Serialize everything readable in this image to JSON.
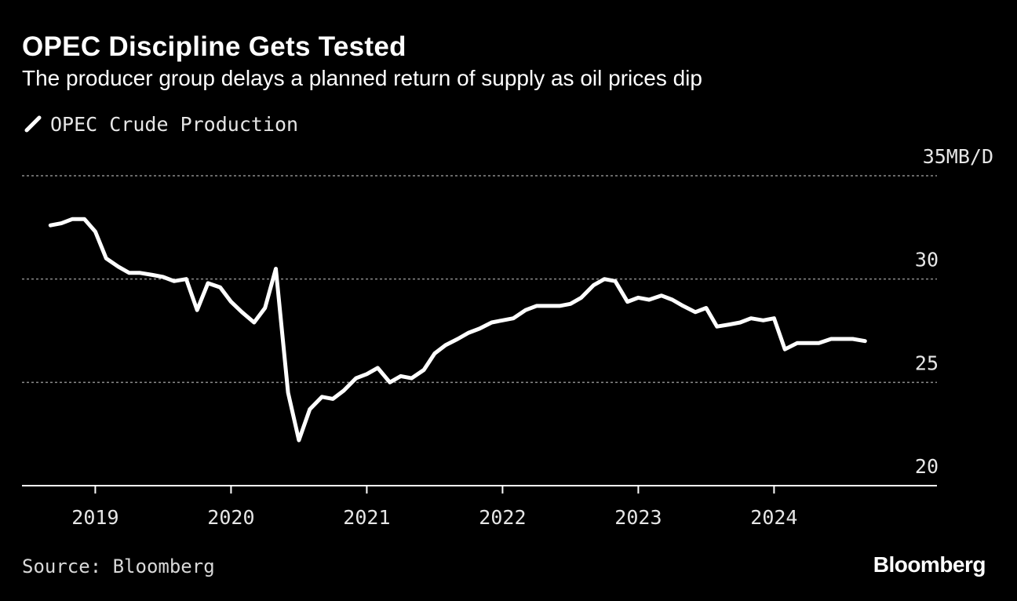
{
  "chart_data": {
    "type": "line",
    "title": "OPEC Discipline Gets Tested",
    "subtitle": "The producer group delays a planned return of supply as oil prices dip",
    "xlabel": "",
    "ylabel": "",
    "y_unit": "MB/D",
    "ylim": [
      20,
      35
    ],
    "y_ticks": [
      {
        "value": 35,
        "label": "35MB/D"
      },
      {
        "value": 30,
        "label": "30"
      },
      {
        "value": 25,
        "label": "25"
      },
      {
        "value": 20,
        "label": "20"
      }
    ],
    "x_ticks": [
      {
        "value": 2019,
        "label": "2019"
      },
      {
        "value": 2020,
        "label": "2020"
      },
      {
        "value": 2021,
        "label": "2021"
      },
      {
        "value": 2022,
        "label": "2022"
      },
      {
        "value": 2023,
        "label": "2023"
      },
      {
        "value": 2024,
        "label": "2024"
      }
    ],
    "xlim": [
      2018.46,
      2025.2
    ],
    "grid": true,
    "legend_position": "top-left",
    "series": [
      {
        "name": "OPEC Crude Production",
        "color": "#ffffff",
        "x": [
          2018.67,
          2018.75,
          2018.83,
          2018.92,
          2019.0,
          2019.08,
          2019.17,
          2019.25,
          2019.33,
          2019.42,
          2019.5,
          2019.58,
          2019.67,
          2019.75,
          2019.83,
          2019.92,
          2020.0,
          2020.08,
          2020.17,
          2020.25,
          2020.33,
          2020.42,
          2020.5,
          2020.58,
          2020.67,
          2020.75,
          2020.83,
          2020.92,
          2021.0,
          2021.08,
          2021.17,
          2021.25,
          2021.33,
          2021.42,
          2021.5,
          2021.58,
          2021.67,
          2021.75,
          2021.83,
          2021.92,
          2022.0,
          2022.08,
          2022.17,
          2022.25,
          2022.33,
          2022.42,
          2022.5,
          2022.58,
          2022.67,
          2022.75,
          2022.83,
          2022.92,
          2023.0,
          2023.08,
          2023.17,
          2023.25,
          2023.33,
          2023.42,
          2023.5,
          2023.58,
          2023.67,
          2023.75,
          2023.83,
          2023.92,
          2024.0,
          2024.08,
          2024.17,
          2024.25,
          2024.33,
          2024.42,
          2024.5,
          2024.58,
          2024.67
        ],
        "values": [
          32.6,
          32.7,
          32.9,
          32.9,
          32.3,
          31.0,
          30.6,
          30.3,
          30.3,
          30.2,
          30.1,
          29.9,
          30.0,
          28.5,
          29.8,
          29.6,
          28.9,
          28.4,
          27.9,
          28.6,
          30.5,
          24.5,
          22.2,
          23.7,
          24.3,
          24.2,
          24.6,
          25.2,
          25.4,
          25.7,
          25.0,
          25.3,
          25.2,
          25.6,
          26.4,
          26.8,
          27.1,
          27.4,
          27.6,
          27.9,
          28.0,
          28.1,
          28.5,
          28.7,
          28.7,
          28.7,
          28.8,
          29.1,
          29.7,
          30.0,
          29.9,
          28.9,
          29.1,
          29.0,
          29.2,
          29.0,
          28.7,
          28.4,
          28.6,
          27.7,
          27.8,
          27.9,
          28.1,
          28.0,
          28.1,
          26.6,
          26.9,
          26.9,
          26.9,
          27.1,
          27.1,
          27.1,
          27.0
        ]
      }
    ]
  },
  "legend": {
    "label": "OPEC Crude Production"
  },
  "footer": {
    "source": "Source: Bloomberg",
    "brand": "Bloomberg"
  },
  "colors": {
    "background": "#000000",
    "line": "#ffffff",
    "grid": "#8c8c8c",
    "text": "#ffffff"
  }
}
